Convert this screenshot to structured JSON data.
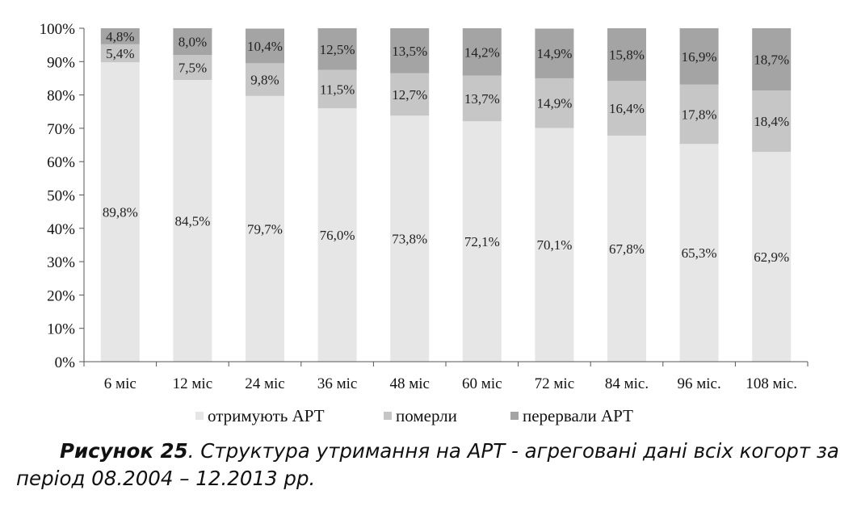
{
  "chart_data": {
    "type": "bar",
    "stacked": true,
    "categories": [
      "6 міс",
      "12 міс",
      "24 міс",
      "36 міс",
      "48 міс",
      "60 міс",
      "72 міс",
      "84 міс.",
      "96 міс.",
      "108 міс."
    ],
    "series": [
      {
        "name": "отримують АРТ",
        "values": [
          89.8,
          84.5,
          79.7,
          76.0,
          73.8,
          72.1,
          70.1,
          67.8,
          65.3,
          62.9
        ],
        "labels": [
          "89,8%",
          "84,5%",
          "79,7%",
          "76,0%",
          "73,8%",
          "72,1%",
          "70,1%",
          "67,8%",
          "65,3%",
          "62,9%"
        ],
        "color": "#e6e6e6"
      },
      {
        "name": "померли",
        "values": [
          5.4,
          7.5,
          9.8,
          11.5,
          12.7,
          13.7,
          14.9,
          16.4,
          17.8,
          18.4
        ],
        "labels": [
          "5,4%",
          "7,5%",
          "9,8%",
          "11,5%",
          "12,7%",
          "13,7%",
          "14,9%",
          "16,4%",
          "17,8%",
          "18,4%"
        ],
        "color": "#c6c6c6"
      },
      {
        "name": "перервали АРТ",
        "values": [
          4.8,
          8.0,
          10.4,
          12.5,
          13.5,
          14.2,
          14.9,
          15.8,
          16.9,
          18.7
        ],
        "labels": [
          "4,8%",
          "8,0%",
          "10,4%",
          "12,5%",
          "13,5%",
          "14,2%",
          "14,9%",
          "15,8%",
          "16,9%",
          "18,7%"
        ],
        "color": "#a4a4a4"
      }
    ],
    "ylim": [
      0,
      100
    ],
    "yticks": [
      "0%",
      "10%",
      "20%",
      "30%",
      "40%",
      "50%",
      "60%",
      "70%",
      "80%",
      "90%",
      "100%"
    ],
    "legend_position": "bottom",
    "grid": false
  },
  "caption": {
    "bold": "Рисунок 25",
    "text": ". Структура утримання на АРТ - агреговані дані всіх когорт за період 08.2004 – 12.2013 рр."
  }
}
